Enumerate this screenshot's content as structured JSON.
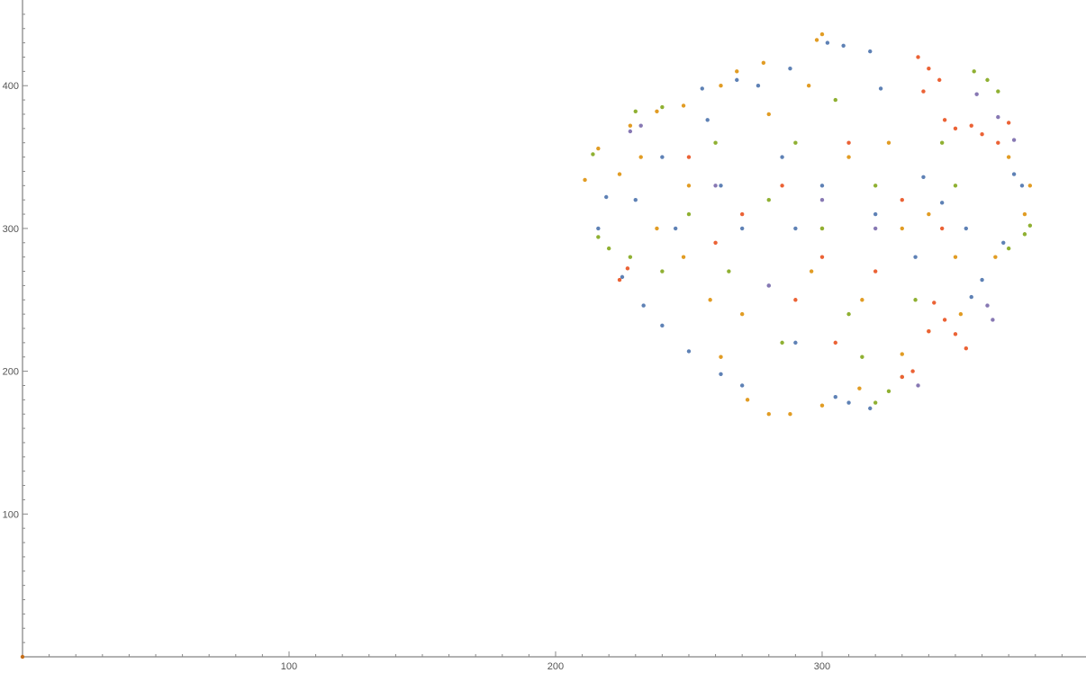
{
  "chart_data": {
    "type": "scatter",
    "title": "",
    "xlabel": "",
    "ylabel": "",
    "xlim": [
      0,
      399
    ],
    "ylim": [
      0,
      460
    ],
    "x_ticks": [
      100,
      200,
      300
    ],
    "x_tick_labels": [
      "100",
      "200",
      "300"
    ],
    "y_ticks": [
      100,
      200,
      300,
      400
    ],
    "y_tick_labels": [
      "100",
      "200",
      "300",
      "400"
    ],
    "grid": false,
    "legend": "none",
    "series": [
      {
        "color": "#5e81b5",
        "points": [
          [
            216,
            300
          ],
          [
            219,
            322
          ],
          [
            225,
            266
          ],
          [
            233,
            246
          ],
          [
            240,
            232
          ],
          [
            250,
            214
          ],
          [
            262,
            198
          ],
          [
            270,
            190
          ],
          [
            257,
            376
          ],
          [
            255,
            398
          ],
          [
            268,
            404
          ],
          [
            276,
            400
          ],
          [
            288,
            412
          ],
          [
            302,
            430
          ],
          [
            308,
            428
          ],
          [
            318,
            424
          ],
          [
            322,
            398
          ],
          [
            338,
            336
          ],
          [
            345,
            318
          ],
          [
            354,
            300
          ],
          [
            372,
            338
          ],
          [
            375,
            330
          ],
          [
            368,
            290
          ],
          [
            360,
            264
          ],
          [
            356,
            252
          ],
          [
            310,
            178
          ],
          [
            318,
            174
          ],
          [
            305,
            182
          ],
          [
            290,
            220
          ],
          [
            280,
            260
          ],
          [
            270,
            300
          ],
          [
            262,
            330
          ],
          [
            300,
            330
          ],
          [
            320,
            310
          ],
          [
            335,
            280
          ],
          [
            290,
            300
          ],
          [
            285,
            350
          ],
          [
            245,
            300
          ],
          [
            240,
            350
          ],
          [
            230,
            320
          ]
        ]
      },
      {
        "color": "#e19c24",
        "points": [
          [
            211,
            334
          ],
          [
            216,
            356
          ],
          [
            228,
            372
          ],
          [
            238,
            382
          ],
          [
            248,
            386
          ],
          [
            262,
            400
          ],
          [
            268,
            410
          ],
          [
            278,
            416
          ],
          [
            298,
            432
          ],
          [
            300,
            436
          ],
          [
            295,
            400
          ],
          [
            310,
            350
          ],
          [
            330,
            300
          ],
          [
            350,
            280
          ],
          [
            365,
            280
          ],
          [
            376,
            310
          ],
          [
            378,
            330
          ],
          [
            370,
            350
          ],
          [
            352,
            240
          ],
          [
            340,
            228
          ],
          [
            330,
            212
          ],
          [
            314,
            188
          ],
          [
            300,
            176
          ],
          [
            288,
            170
          ],
          [
            280,
            170
          ],
          [
            272,
            180
          ],
          [
            262,
            210
          ],
          [
            258,
            250
          ],
          [
            248,
            280
          ],
          [
            238,
            300
          ],
          [
            224,
            338
          ],
          [
            232,
            350
          ],
          [
            296,
            270
          ],
          [
            315,
            250
          ],
          [
            325,
            360
          ],
          [
            280,
            380
          ],
          [
            300,
            300
          ],
          [
            270,
            240
          ],
          [
            250,
            330
          ],
          [
            340,
            310
          ]
        ]
      },
      {
        "color": "#8fb032",
        "points": [
          [
            214,
            352
          ],
          [
            216,
            294
          ],
          [
            220,
            286
          ],
          [
            228,
            280
          ],
          [
            230,
            382
          ],
          [
            240,
            385
          ],
          [
            320,
            178
          ],
          [
            325,
            186
          ],
          [
            330,
            196
          ],
          [
            357,
            410
          ],
          [
            362,
            404
          ],
          [
            366,
            396
          ],
          [
            370,
            286
          ],
          [
            376,
            296
          ],
          [
            378,
            302
          ],
          [
            345,
            360
          ],
          [
            300,
            300
          ],
          [
            280,
            320
          ],
          [
            310,
            240
          ],
          [
            265,
            270
          ],
          [
            335,
            250
          ],
          [
            290,
            360
          ],
          [
            250,
            310
          ],
          [
            320,
            330
          ],
          [
            285,
            220
          ],
          [
            350,
            330
          ],
          [
            240,
            270
          ],
          [
            305,
            390
          ],
          [
            260,
            360
          ],
          [
            315,
            210
          ]
        ]
      },
      {
        "color": "#eb6235",
        "points": [
          [
            336,
            420
          ],
          [
            340,
            412
          ],
          [
            344,
            404
          ],
          [
            338,
            396
          ],
          [
            346,
            376
          ],
          [
            350,
            370
          ],
          [
            356,
            372
          ],
          [
            360,
            366
          ],
          [
            366,
            360
          ],
          [
            370,
            374
          ],
          [
            342,
            248
          ],
          [
            346,
            236
          ],
          [
            350,
            226
          ],
          [
            354,
            216
          ],
          [
            340,
            228
          ],
          [
            334,
            200
          ],
          [
            330,
            196
          ],
          [
            224,
            264
          ],
          [
            227,
            272
          ],
          [
            300,
            280
          ],
          [
            285,
            330
          ],
          [
            320,
            270
          ],
          [
            270,
            310
          ],
          [
            310,
            360
          ],
          [
            260,
            290
          ],
          [
            330,
            320
          ],
          [
            290,
            250
          ],
          [
            345,
            300
          ],
          [
            250,
            350
          ],
          [
            305,
            220
          ]
        ]
      },
      {
        "color": "#8778b3",
        "points": [
          [
            358,
            394
          ],
          [
            366,
            378
          ],
          [
            364,
            236
          ],
          [
            362,
            246
          ],
          [
            336,
            190
          ],
          [
            232,
            372
          ],
          [
            228,
            368
          ],
          [
            372,
            362
          ],
          [
            300,
            320
          ],
          [
            280,
            260
          ],
          [
            320,
            300
          ],
          [
            260,
            330
          ]
        ]
      },
      {
        "color": "#c56e1a",
        "points": [
          [
            0,
            0
          ]
        ]
      }
    ]
  }
}
